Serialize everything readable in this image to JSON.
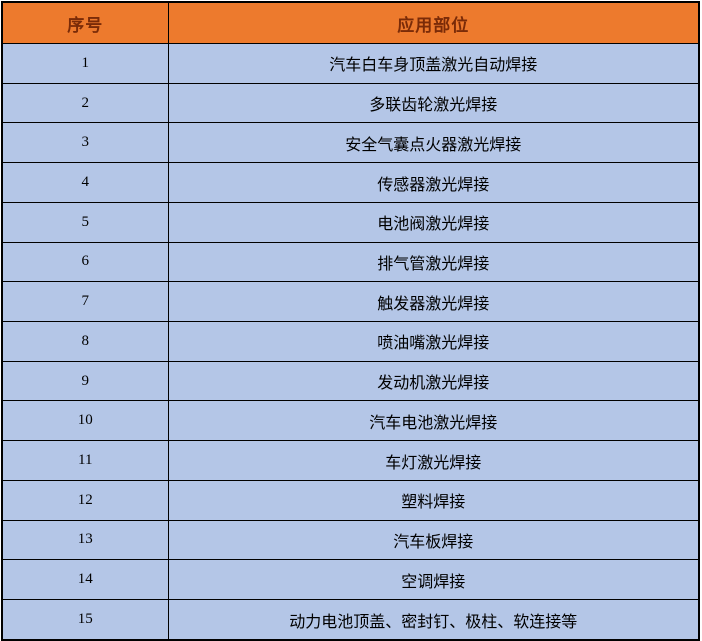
{
  "colors": {
    "header_bg": "#ED7A2D",
    "header_text": "#7A2B08",
    "row_bg": "#B4C6E7",
    "border": "#000000",
    "body_text": "#000000"
  },
  "table": {
    "columns": [
      "序号",
      "应用部位"
    ],
    "rows": [
      {
        "no": "1",
        "application": "汽车白车身顶盖激光自动焊接"
      },
      {
        "no": "2",
        "application": "多联齿轮激光焊接"
      },
      {
        "no": "3",
        "application": "安全气囊点火器激光焊接"
      },
      {
        "no": "4",
        "application": "传感器激光焊接"
      },
      {
        "no": "5",
        "application": "电池阀激光焊接"
      },
      {
        "no": "6",
        "application": "排气管激光焊接"
      },
      {
        "no": "7",
        "application": "触发器激光焊接"
      },
      {
        "no": "8",
        "application": "喷油嘴激光焊接"
      },
      {
        "no": "9",
        "application": "发动机激光焊接"
      },
      {
        "no": "10",
        "application": "汽车电池激光焊接"
      },
      {
        "no": "11",
        "application": "车灯激光焊接"
      },
      {
        "no": "12",
        "application": "塑料焊接"
      },
      {
        "no": "13",
        "application": "汽车板焊接"
      },
      {
        "no": "14",
        "application": "空调焊接"
      },
      {
        "no": "15",
        "application": "动力电池顶盖、密封钉、极柱、软连接等"
      }
    ]
  }
}
